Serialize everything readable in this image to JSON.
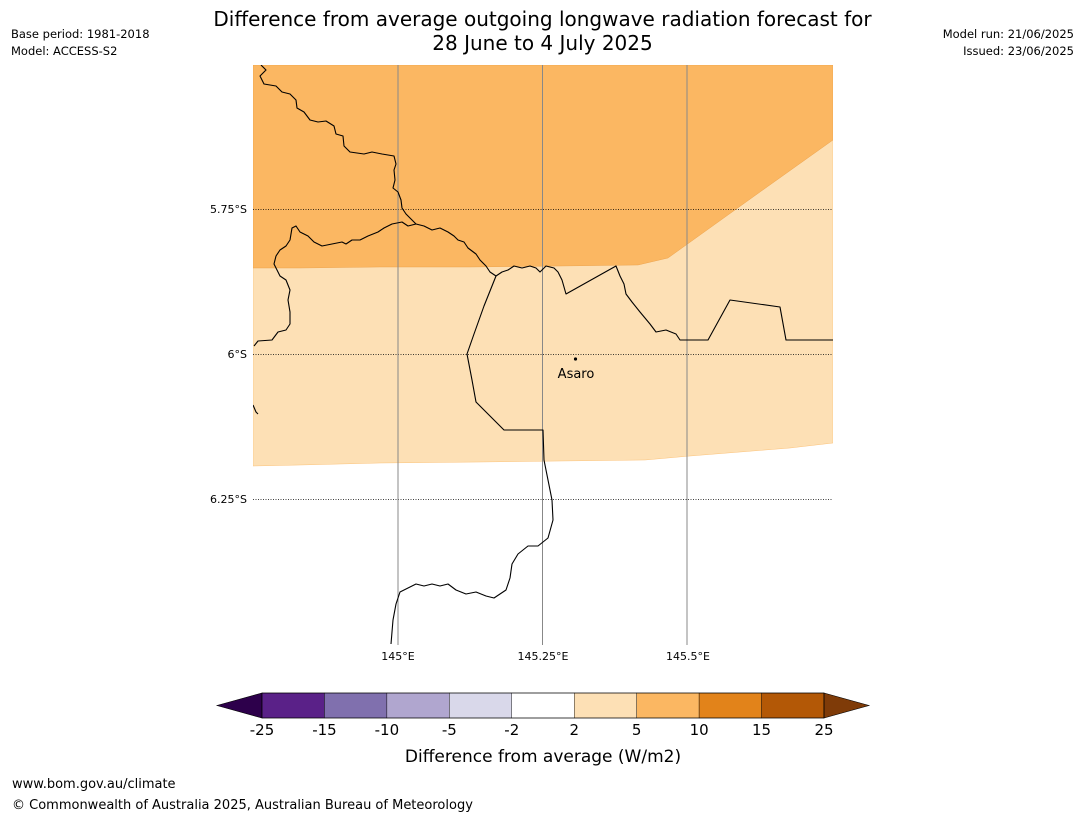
{
  "header": {
    "title_line1": "Difference from average outgoing longwave radiation forecast for",
    "title_line2": "28 June to 4 July 2025",
    "base_period": "Base period: 1981-2018",
    "model": "Model: ACCESS-S2",
    "model_run": "Model run: 21/06/2025",
    "issued": "Issued: 23/06/2025"
  },
  "map": {
    "lat_labels": [
      "5.75°S",
      "6°S",
      "6.25°S"
    ],
    "lon_labels": [
      "145°E",
      "145.25°E",
      "145.5°E"
    ],
    "place": {
      "name": "Asaro"
    },
    "shading": [
      {
        "range": "5 to 10",
        "color": "#fbb762"
      },
      {
        "range": "2 to 5",
        "color": "#fde0b5"
      }
    ]
  },
  "colorbar": {
    "title": "Difference from average (W/m2)",
    "ticks": [
      "-25",
      "-15",
      "-10",
      "-5",
      "-2",
      "2",
      "5",
      "10",
      "15",
      "25"
    ],
    "colors": [
      "#5a2188",
      "#8070ae",
      "#b0a6cf",
      "#d9d8ea",
      "#ffffff",
      "#fde0b5",
      "#fbb762",
      "#e2831a",
      "#b35806"
    ],
    "under_color": "#2d004b",
    "over_color": "#7f3b08"
  },
  "footer": {
    "url": "www.bom.gov.au/climate",
    "copyright": "© Commonwealth of Australia 2025, Australian Bureau of Meteorology"
  }
}
